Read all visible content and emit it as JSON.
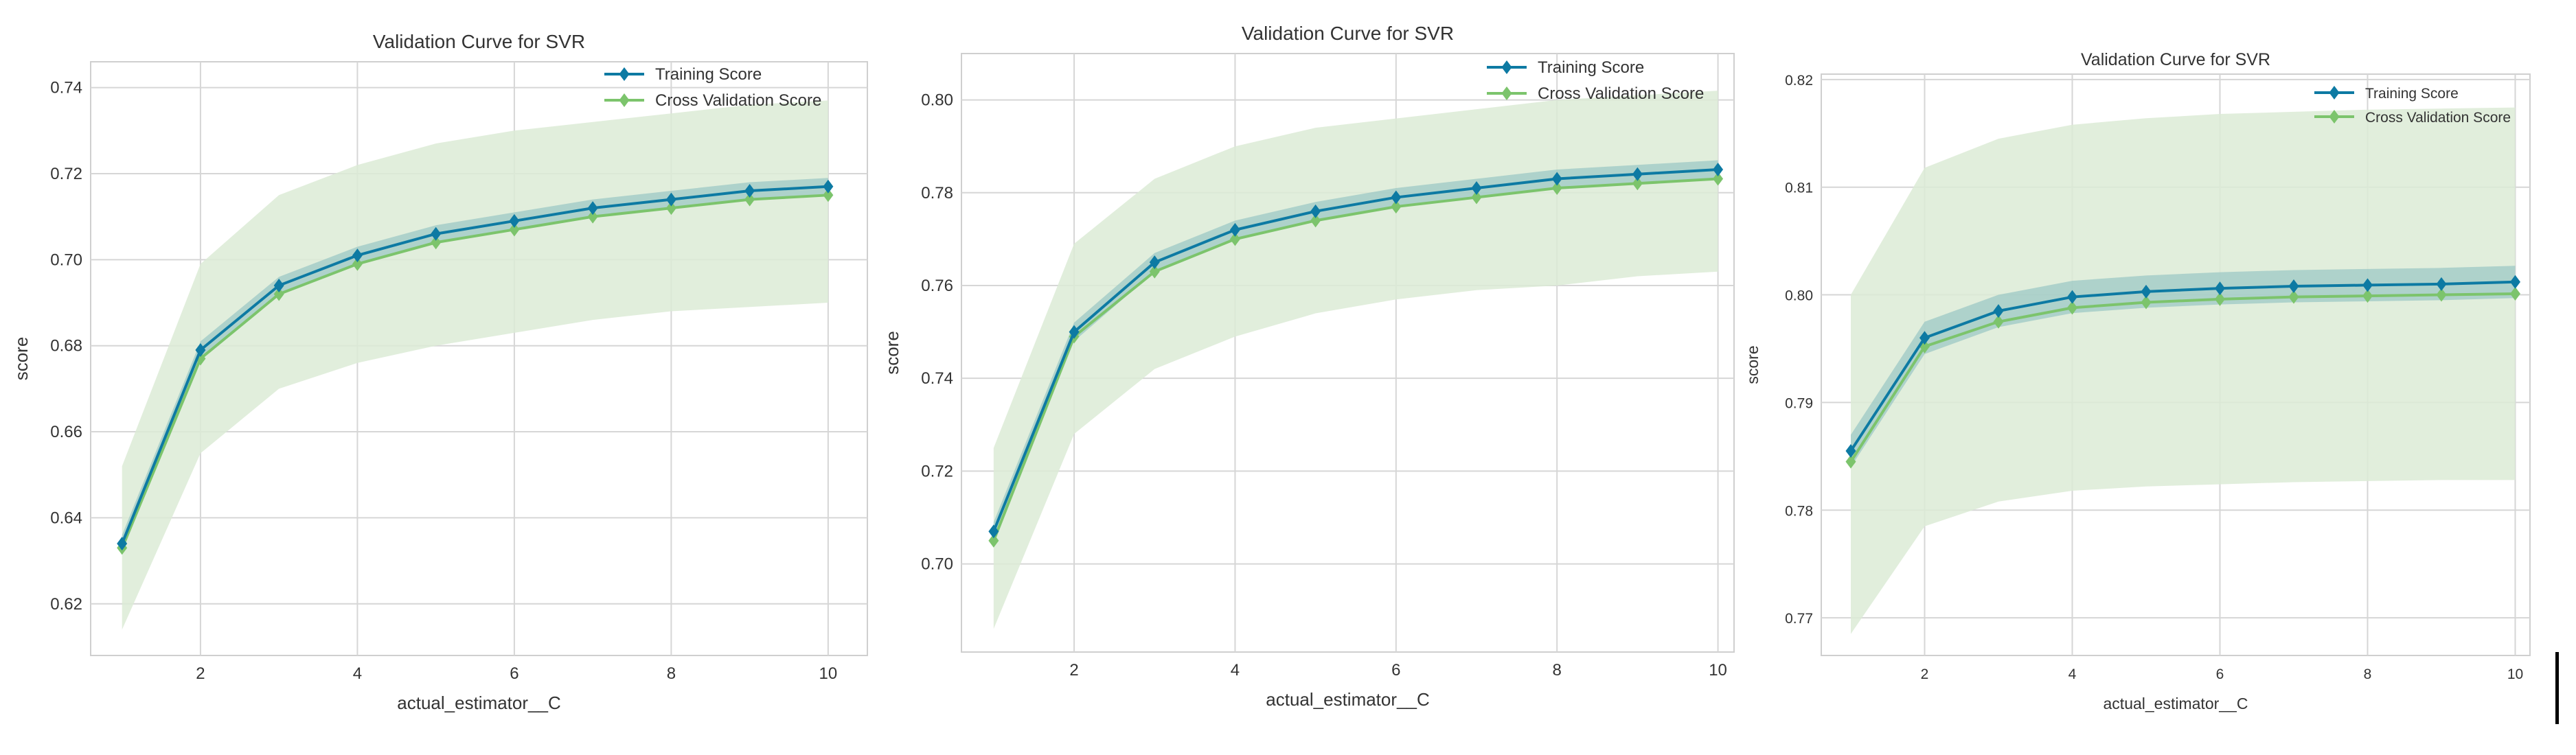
{
  "colors": {
    "training": "#0d7aa3",
    "cv": "#7cc46c",
    "cv_band": "#dcebd6",
    "train_band": "#8cc0c0",
    "grid": "#d6d6d6",
    "frame": "#cfcfcf"
  },
  "legend": {
    "training": "Training Score",
    "cv": "Cross Validation Score"
  },
  "chart_data": [
    {
      "type": "line",
      "title": "Validation Curve for SVR",
      "xlabel": "actual_estimator__C",
      "ylabel": "score",
      "xlim": [
        0.6,
        10.5
      ],
      "ylim": [
        0.608,
        0.746
      ],
      "xticks": [
        2,
        4,
        6,
        8,
        10
      ],
      "xtick_labels": [
        "2",
        "4",
        "6",
        "8",
        "10"
      ],
      "yticks": [
        0.62,
        0.64,
        0.66,
        0.68,
        0.7,
        0.72,
        0.74
      ],
      "ytick_labels": [
        "0.62",
        "0.64",
        "0.66",
        "0.68",
        "0.70",
        "0.72",
        "0.74"
      ],
      "grid": true,
      "legend_position": "top-right",
      "x": [
        1,
        2,
        3,
        4,
        5,
        6,
        7,
        8,
        9,
        10
      ],
      "series": [
        {
          "name": "Training Score",
          "values": [
            0.634,
            0.679,
            0.694,
            0.701,
            0.706,
            0.709,
            0.712,
            0.714,
            0.716,
            0.717
          ],
          "band": 0.002
        },
        {
          "name": "Cross Validation Score",
          "values": [
            0.633,
            0.677,
            0.692,
            0.699,
            0.704,
            0.707,
            0.71,
            0.712,
            0.714,
            0.715
          ],
          "band_upper": [
            0.652,
            0.699,
            0.715,
            0.722,
            0.727,
            0.73,
            0.732,
            0.734,
            0.736,
            0.737
          ],
          "band_lower": [
            0.614,
            0.655,
            0.67,
            0.676,
            0.68,
            0.683,
            0.686,
            0.688,
            0.689,
            0.69
          ]
        }
      ]
    },
    {
      "type": "line",
      "title": "Validation Curve for SVR",
      "xlabel": "actual_estimator__C",
      "ylabel": "score",
      "xlim": [
        0.6,
        10.2
      ],
      "ylim": [
        0.681,
        0.81
      ],
      "xticks": [
        2,
        4,
        6,
        8,
        10
      ],
      "xtick_labels": [
        "2",
        "4",
        "6",
        "8",
        "10"
      ],
      "yticks": [
        0.7,
        0.72,
        0.74,
        0.76,
        0.78,
        0.8
      ],
      "ytick_labels": [
        "0.70",
        "0.72",
        "0.74",
        "0.76",
        "0.78",
        "0.80"
      ],
      "grid": true,
      "legend_position": "top-right",
      "x": [
        1,
        2,
        3,
        4,
        5,
        6,
        7,
        8,
        9,
        10
      ],
      "series": [
        {
          "name": "Training Score",
          "values": [
            0.707,
            0.75,
            0.765,
            0.772,
            0.776,
            0.779,
            0.781,
            0.783,
            0.784,
            0.785
          ],
          "band": 0.002
        },
        {
          "name": "Cross Validation Score",
          "values": [
            0.705,
            0.749,
            0.763,
            0.77,
            0.774,
            0.777,
            0.779,
            0.781,
            0.782,
            0.783
          ],
          "band_upper": [
            0.725,
            0.769,
            0.783,
            0.79,
            0.794,
            0.796,
            0.798,
            0.8,
            0.801,
            0.802
          ],
          "band_lower": [
            0.686,
            0.728,
            0.742,
            0.749,
            0.754,
            0.757,
            0.759,
            0.76,
            0.762,
            0.763
          ]
        }
      ]
    },
    {
      "type": "line",
      "title": "Validation Curve for SVR",
      "xlabel": "actual_estimator__C",
      "ylabel": "score",
      "xlim": [
        0.6,
        10.2
      ],
      "ylim": [
        0.7665,
        0.8205
      ],
      "xticks": [
        2,
        4,
        6,
        8,
        10
      ],
      "xtick_labels": [
        "2",
        "4",
        "6",
        "8",
        "10"
      ],
      "yticks": [
        0.77,
        0.78,
        0.79,
        0.8,
        0.81,
        0.82
      ],
      "ytick_labels": [
        "0.77",
        "0.78",
        "0.79",
        "0.80",
        "0.81",
        "0.82"
      ],
      "grid": true,
      "legend_position": "top-right",
      "x": [
        1,
        2,
        3,
        4,
        5,
        6,
        7,
        8,
        9,
        10
      ],
      "series": [
        {
          "name": "Training Score",
          "values": [
            0.7855,
            0.796,
            0.7985,
            0.7998,
            0.8003,
            0.8006,
            0.8008,
            0.8009,
            0.801,
            0.8012
          ],
          "band": 0.0015
        },
        {
          "name": "Cross Validation Score",
          "values": [
            0.7845,
            0.7952,
            0.7975,
            0.7988,
            0.7993,
            0.7996,
            0.7998,
            0.7999,
            0.8,
            0.8001
          ],
          "band_upper": [
            0.8,
            0.8118,
            0.8145,
            0.8158,
            0.8164,
            0.8168,
            0.817,
            0.8172,
            0.8173,
            0.8174
          ],
          "band_lower": [
            0.7685,
            0.7785,
            0.7808,
            0.7818,
            0.7822,
            0.7824,
            0.7826,
            0.7827,
            0.7828,
            0.7828
          ]
        }
      ]
    }
  ]
}
